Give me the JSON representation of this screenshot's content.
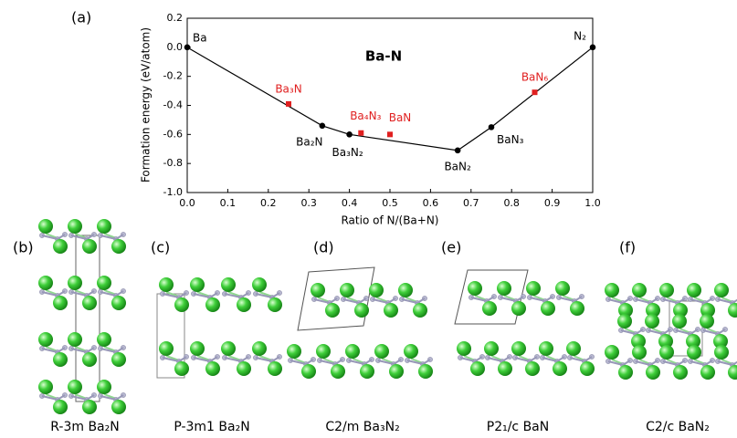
{
  "chart_data": {
    "type": "line",
    "panel_label": "(a)",
    "title": "Ba-N",
    "xlabel": "Ratio of N/(Ba+N)",
    "ylabel": "Formation energy (eV/atom)",
    "xlim": [
      0,
      1
    ],
    "ylim": [
      -1,
      0.2
    ],
    "xticks": [
      {
        "value": 0,
        "label": "0.0"
      },
      0.1,
      0.2,
      0.3,
      0.4,
      0.5,
      0.6,
      0.7,
      0.8,
      0.9,
      {
        "value": 1,
        "label": "1.0"
      }
    ],
    "yticks": [
      {
        "value": -1,
        "label": "-1.0"
      },
      -0.8,
      -0.6,
      -0.4,
      -0.2,
      {
        "value": 0,
        "label": "0.0"
      },
      0.2
    ],
    "series": [
      {
        "color": "#000000",
        "connect": true,
        "x": [
          0,
          0.333,
          0.4,
          0.667,
          0.75,
          1
        ],
        "values": [
          0,
          -0.54,
          -0.6,
          -0.71,
          -0.55,
          0
        ],
        "labels": [
          "Ba",
          "Ba₂N",
          "Ba₃N₂",
          "BaN₂",
          "BaN₃",
          "N₂"
        ]
      },
      {
        "color": "#e02020",
        "connect": false,
        "x": [
          0.25,
          0.4286,
          0.5,
          0.857
        ],
        "values": [
          -0.39,
          -0.59,
          -0.6,
          -0.31
        ],
        "labels": [
          "Ba₃N",
          "Ba₄N₃",
          "BaN",
          "BaN₆"
        ]
      }
    ]
  },
  "panels": [
    {
      "label": "(b)",
      "caption": "R-3m Ba₂N"
    },
    {
      "label": "(c)",
      "caption": "P-3m1 Ba₂N"
    },
    {
      "label": "(d)",
      "caption": "C2/m Ba₃N₂"
    },
    {
      "label": "(e)",
      "caption": "P2₁/c  BaN"
    },
    {
      "label": "(f)",
      "caption": "C2/c  BaN₂"
    }
  ]
}
